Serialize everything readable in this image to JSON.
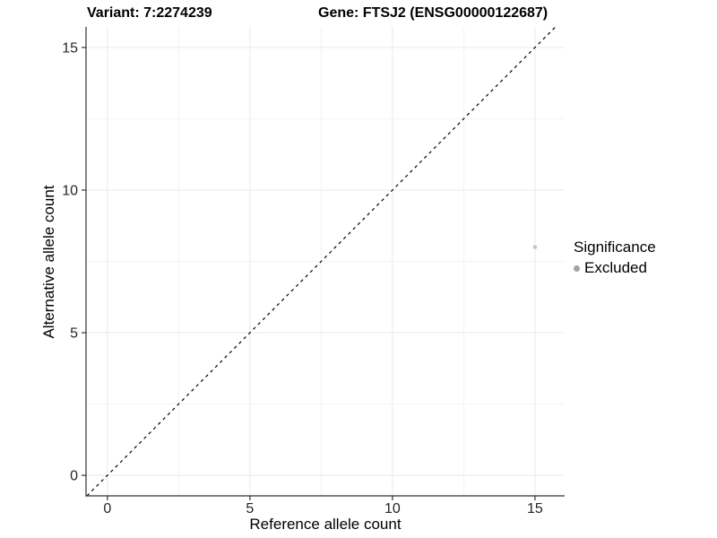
{
  "titles": {
    "variant": "Variant: 7:2274239",
    "gene": "Gene: FTSJ2 (ENSG00000122687)"
  },
  "chart_data": {
    "type": "scatter",
    "xlabel": "Reference allele count",
    "ylabel": "Alternative allele count",
    "xlim": [
      -0.75,
      16.04
    ],
    "ylim": [
      -0.72,
      15.72
    ],
    "x_ticks": [
      0,
      5,
      10,
      15
    ],
    "y_ticks": [
      0,
      5,
      10,
      15
    ],
    "x_minor_ticks": [
      2.5,
      7.5,
      12.5
    ],
    "y_minor_ticks": [
      2.5,
      7.5,
      12.5
    ],
    "grid": "major and minor gridlines on white panel",
    "identity_line": {
      "equation": "y = x",
      "style": "dashed",
      "color": "#000000"
    },
    "series": [
      {
        "name": "Excluded",
        "color": "#c6c6c6",
        "point_radius": 2.3,
        "points": [
          {
            "x": 15,
            "y": 8
          }
        ]
      }
    ],
    "legend": {
      "title": "Significance",
      "position": "right",
      "items": [
        {
          "label": "Excluded",
          "color": "#a3a3a3"
        }
      ]
    },
    "colors": {
      "grid_major": "#e9e9e9",
      "grid_minor": "#f3f3f3",
      "axis_line": "#333333",
      "tick_mark": "#333333",
      "tick_text": "#262626"
    }
  }
}
